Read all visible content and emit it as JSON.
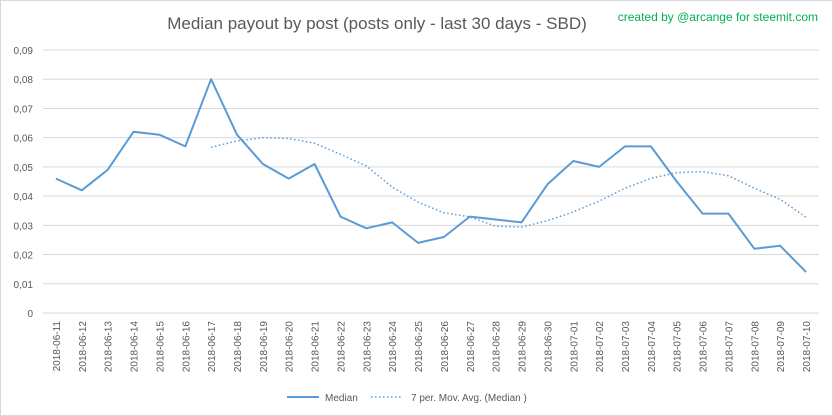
{
  "chart_data": {
    "type": "line",
    "title": "Median payout by post (posts only - last 30 days - SBD)",
    "credit": "created by @arcange for steemit.com",
    "xlabel": "",
    "ylabel": "",
    "ylim": [
      0,
      0.09
    ],
    "yticks": [
      "0",
      "0,01",
      "0,02",
      "0,03",
      "0,04",
      "0,05",
      "0,06",
      "0,07",
      "0,08",
      "0,09"
    ],
    "grid": true,
    "legend_position": "bottom",
    "categories": [
      "2018-06-11",
      "2018-06-12",
      "2018-06-13",
      "2018-06-14",
      "2018-06-15",
      "2018-06-16",
      "2018-06-17",
      "2018-06-18",
      "2018-06-19",
      "2018-06-20",
      "2018-06-21",
      "2018-06-22",
      "2018-06-23",
      "2018-06-24",
      "2018-06-25",
      "2018-06-26",
      "2018-06-27",
      "2018-06-28",
      "2018-06-29",
      "2018-06-30",
      "2018-07-01",
      "2018-07-02",
      "2018-07-03",
      "2018-07-04",
      "2018-07-05",
      "2018-07-06",
      "2018-07-07",
      "2018-07-08",
      "2018-07-09",
      "2018-07-10"
    ],
    "series": [
      {
        "name": "Median",
        "style": "solid",
        "color": "#5b9bd5",
        "values": [
          0.046,
          0.042,
          0.049,
          0.062,
          0.061,
          0.057,
          0.08,
          0.061,
          0.051,
          0.046,
          0.051,
          0.033,
          0.029,
          0.031,
          0.024,
          0.026,
          0.033,
          0.032,
          0.031,
          0.044,
          0.052,
          0.05,
          0.057,
          0.057,
          0.045,
          0.034,
          0.034,
          0.022,
          0.023,
          0.014
        ]
      },
      {
        "name": "7 per. Mov. Avg. (Median )",
        "style": "dotted",
        "color": "#5b9bd5",
        "values": [
          null,
          null,
          null,
          null,
          null,
          null,
          0.0567,
          0.0589,
          0.06,
          0.0597,
          0.0581,
          0.0543,
          0.0503,
          0.0431,
          0.0379,
          0.0343,
          0.0329,
          0.0297,
          0.0294,
          0.0316,
          0.0346,
          0.0383,
          0.0427,
          0.0461,
          0.048,
          0.0484,
          0.047,
          0.0427,
          0.0389,
          0.0327
        ]
      }
    ]
  }
}
